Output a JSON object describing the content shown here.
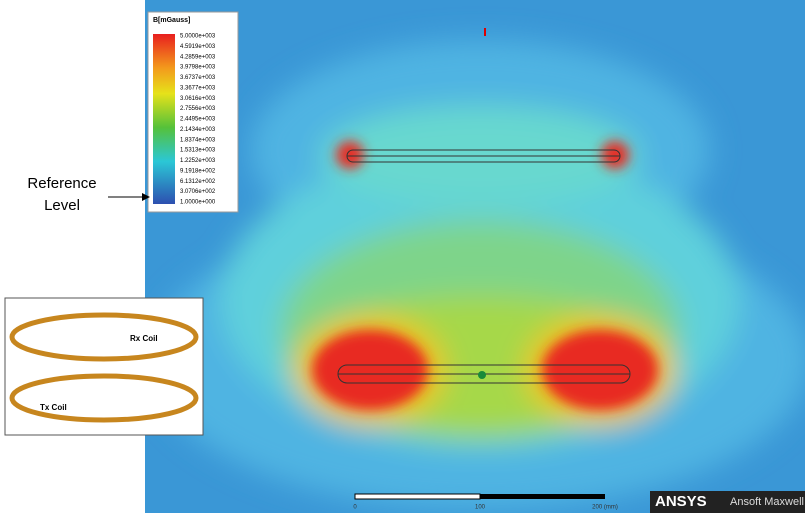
{
  "legend": {
    "title": "B[mGauss]",
    "levels": [
      "5.0000e+003",
      "4.5919e+003",
      "4.2859e+003",
      "3.9798e+003",
      "3.6737e+003",
      "3.3677e+003",
      "3.0616e+003",
      "2.7556e+003",
      "2.4495e+003",
      "2.1434e+003",
      "1.8374e+003",
      "1.5313e+003",
      "1.2252e+003",
      "9.1918e+002",
      "6.1312e+002",
      "3.0706e+002",
      "1.0000e+000"
    ]
  },
  "annotation": {
    "line1": "Reference",
    "line2": "Level"
  },
  "inset": {
    "rx_label": "Rx Coil",
    "tx_label": "Tx Coil"
  },
  "scale_bar": {
    "labels": [
      "0",
      "100",
      "200 (mm)"
    ]
  },
  "brand": {
    "logo": "ANSYS",
    "product": "Ansoft Maxwell"
  }
}
